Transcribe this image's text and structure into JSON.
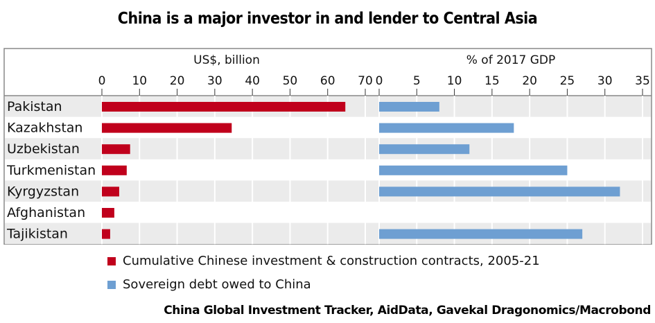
{
  "title": "China is a major investor in and lender to Central Asia",
  "chart_data": [
    {
      "type": "bar",
      "orientation": "horizontal",
      "title": "US$, billion",
      "categories": [
        "Pakistan",
        "Kazakhstan",
        "Uzbekistan",
        "Turkmenistan",
        "Kyrgyzstan",
        "Afghanistan",
        "Tajikistan"
      ],
      "series": [
        {
          "name": "Cumulative Chinese investment & construction contracts, 2005-21",
          "color": "#c0001c",
          "values": [
            64.7,
            34.5,
            7.5,
            6.6,
            4.6,
            3.3,
            2.2
          ]
        }
      ],
      "xlim": [
        0,
        70
      ],
      "ticks": [
        0,
        10,
        20,
        30,
        40,
        50,
        60,
        70
      ]
    },
    {
      "type": "bar",
      "orientation": "horizontal",
      "title": "% of 2017 GDP",
      "categories": [
        "Pakistan",
        "Kazakhstan",
        "Uzbekistan",
        "Turkmenistan",
        "Kyrgyzstan",
        "Afghanistan",
        "Tajikistan"
      ],
      "series": [
        {
          "name": "Sovereign debt owed to China",
          "color": "#6e9fd2",
          "values": [
            8.0,
            17.9,
            12.0,
            25.0,
            32.0,
            null,
            27.0
          ]
        }
      ],
      "xlim": [
        0,
        35
      ],
      "ticks": [
        0,
        5,
        10,
        15,
        20,
        25,
        30,
        35
      ]
    }
  ],
  "legend": [
    "Cumulative Chinese investment & construction contracts, 2005-21",
    "Sovereign debt owed to China"
  ],
  "source": "China Global Investment Tracker, AidData, Gavekal Dragonomics/Macrobond"
}
